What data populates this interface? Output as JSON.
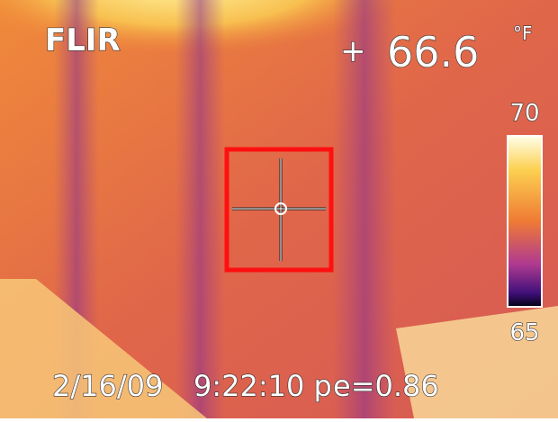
{
  "brand": "FLIR",
  "spot_temperature": {
    "value": 66.6,
    "unit": "°F"
  },
  "scale": {
    "max": 70,
    "min": 65
  },
  "footer": {
    "date": "2/16/09",
    "time": "9:22:10 p",
    "emissivity": "e=0.86"
  }
}
